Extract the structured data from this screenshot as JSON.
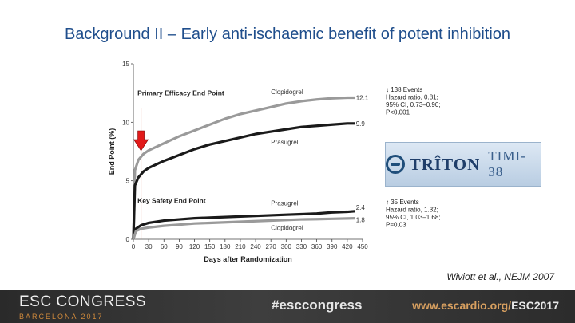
{
  "slide": {
    "title": "Background II – Early anti-ischaemic benefit of potent inhibition",
    "citation": "Wiviott et al., NEJM 2007"
  },
  "logo": {
    "text1": "TRÎTON",
    "text2": "TIMI-38"
  },
  "footer": {
    "event": "ESC CONGRESS",
    "city": "BARCELONA 2017",
    "hashtag": "#esccongress",
    "url": "www.escardio.org/",
    "url_year": "ESC2017"
  },
  "colors": {
    "title": "#1f4e8c",
    "clopidogrel": "#9a9a9a",
    "prasugrel": "#1a1a1a",
    "marker_line": "#d9623a",
    "arrow": "#e21a1a"
  },
  "chart_data": {
    "type": "line",
    "xlabel": "Days after Randomization",
    "ylabel": "End Point (%)",
    "xlim": [
      0,
      450
    ],
    "ylim": [
      0,
      15
    ],
    "x_ticks": [
      0,
      30,
      60,
      90,
      120,
      150,
      180,
      210,
      240,
      270,
      300,
      330,
      360,
      390,
      420,
      450
    ],
    "y_ticks": [
      0,
      5,
      10,
      15
    ],
    "marker_day": 15,
    "panels": [
      {
        "title": "Primary Efficacy End Point",
        "annotation": [
          "↓ 138 Events",
          "Hazard ratio, 0.81;",
          "95% CI, 0.73–0.90;",
          "P<0.001"
        ],
        "series": [
          {
            "name": "Clopidogrel",
            "end_label": "12.1",
            "x": [
              0,
              3,
              10,
              20,
              30,
              60,
              90,
              120,
              150,
              180,
              210,
              240,
              270,
              300,
              330,
              360,
              390,
              420,
              435
            ],
            "y": [
              0,
              5.9,
              6.8,
              7.3,
              7.6,
              8.2,
              8.8,
              9.3,
              9.8,
              10.3,
              10.7,
              11.0,
              11.3,
              11.6,
              11.8,
              11.95,
              12.05,
              12.1,
              12.1
            ]
          },
          {
            "name": "Prasugrel",
            "end_label": "9.9",
            "x": [
              0,
              3,
              10,
              20,
              30,
              60,
              90,
              120,
              150,
              180,
              210,
              240,
              270,
              300,
              330,
              360,
              390,
              420,
              435
            ],
            "y": [
              0,
              4.6,
              5.3,
              5.8,
              6.1,
              6.7,
              7.2,
              7.7,
              8.1,
              8.4,
              8.7,
              9.0,
              9.2,
              9.4,
              9.6,
              9.7,
              9.8,
              9.9,
              9.9
            ]
          }
        ]
      },
      {
        "title": "Key Safety End Point",
        "annotation": [
          "↑ 35 Events",
          "Hazard ratio, 1.32;",
          "95% CI, 1.03–1.68;",
          "P=0.03"
        ],
        "series": [
          {
            "name": "Prasugrel",
            "end_label": "2.4",
            "x": [
              0,
              5,
              15,
              30,
              60,
              90,
              120,
              150,
              180,
              210,
              240,
              270,
              300,
              330,
              360,
              390,
              420,
              435
            ],
            "y": [
              0,
              0.9,
              1.2,
              1.4,
              1.6,
              1.7,
              1.8,
              1.85,
              1.9,
              1.95,
              2.0,
              2.05,
              2.1,
              2.15,
              2.2,
              2.3,
              2.35,
              2.4
            ]
          },
          {
            "name": "Clopidogrel",
            "end_label": "1.8",
            "x": [
              0,
              5,
              15,
              30,
              60,
              90,
              120,
              150,
              180,
              210,
              240,
              270,
              300,
              330,
              360,
              390,
              420,
              435
            ],
            "y": [
              0,
              0.7,
              0.9,
              1.0,
              1.15,
              1.25,
              1.35,
              1.4,
              1.45,
              1.5,
              1.55,
              1.6,
              1.65,
              1.7,
              1.72,
              1.75,
              1.78,
              1.8
            ]
          }
        ]
      }
    ]
  }
}
